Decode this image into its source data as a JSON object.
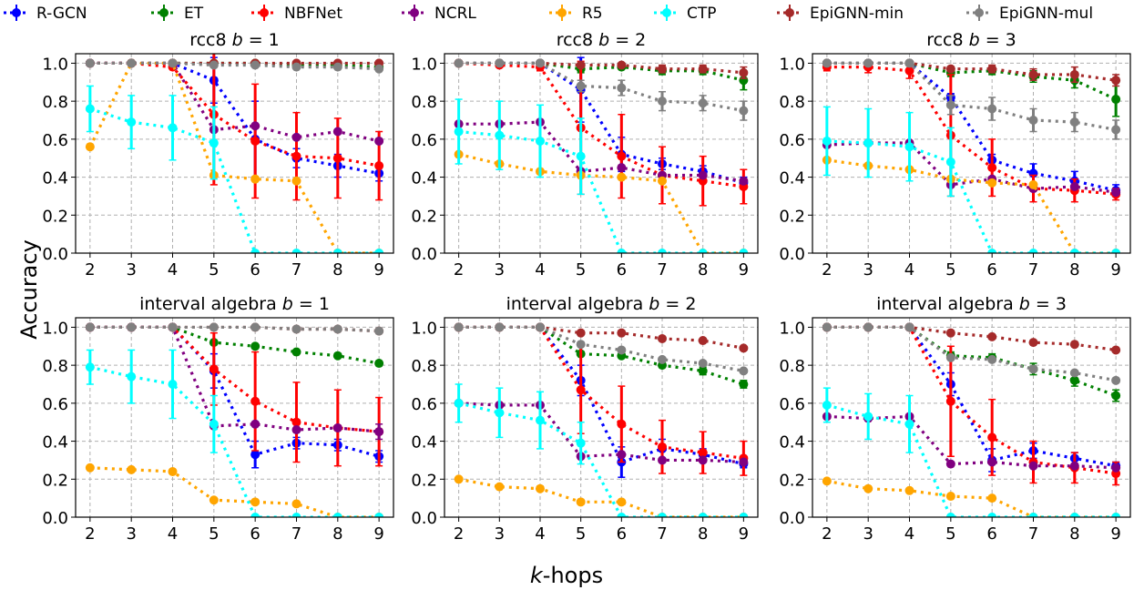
{
  "chart_data": {
    "type": "line",
    "ylabel": "Accuracy",
    "xlabel": "k-hops",
    "legend_placement": "top",
    "grid": true,
    "xlim": [
      1.65,
      9.35
    ],
    "ylim": [
      0,
      1.05
    ],
    "x": [
      2,
      3,
      4,
      5,
      6,
      7,
      8,
      9
    ],
    "xticks": [
      "2",
      "3",
      "4",
      "5",
      "6",
      "7",
      "8",
      "9"
    ],
    "yticks": [
      "0.0",
      "0.2",
      "0.4",
      "0.6",
      "0.8",
      "1.0"
    ],
    "series_styles": [
      {
        "name": "R-GCN",
        "color": "#0000ff"
      },
      {
        "name": "ET",
        "color": "#008000"
      },
      {
        "name": "NBFNet",
        "color": "#ff0000"
      },
      {
        "name": "NCRL",
        "color": "#800080"
      },
      {
        "name": "R5",
        "color": "#ffa500"
      },
      {
        "name": "CTP",
        "color": "#00ffff"
      },
      {
        "name": "EpiGNN-min",
        "color": "#a52a2a"
      },
      {
        "name": "EpiGNN-mul",
        "color": "#808080"
      }
    ],
    "panels": [
      {
        "title": "rcc8 b = 1",
        "series": [
          {
            "name": "R-GCN",
            "values": [
              1,
              1,
              1,
              0.91,
              0.6,
              0.5,
              0.46,
              0.42
            ],
            "err": [
              0,
              0,
              0,
              0.12,
              0.2,
              0.05,
              0.06,
              0.04
            ]
          },
          {
            "name": "ET",
            "values": [
              1,
              1,
              1,
              1,
              1,
              0.99,
              0.99,
              0.98
            ]
          },
          {
            "name": "NBFNet",
            "values": [
              1,
              1,
              0.98,
              0.73,
              0.59,
              0.51,
              0.5,
              0.46
            ],
            "err": [
              0,
              0,
              0.01,
              0.37,
              0.3,
              0.23,
              0.21,
              0.18
            ]
          },
          {
            "name": "NCRL",
            "values": [
              1,
              1,
              1,
              0.65,
              0.67,
              0.61,
              0.64,
              0.59
            ]
          },
          {
            "name": "R5",
            "values": [
              0.56,
              1,
              1,
              0.41,
              0.39,
              0.38,
              0,
              0
            ]
          },
          {
            "name": "CTP",
            "values": [
              0.76,
              0.69,
              0.66,
              0.58,
              0,
              0,
              0,
              0
            ],
            "err": [
              0.12,
              0.14,
              0.17,
              0.19,
              0,
              0,
              0,
              0
            ]
          },
          {
            "name": "EpiGNN-min",
            "values": [
              1,
              1,
              1,
              1,
              1,
              1,
              1,
              1
            ]
          },
          {
            "name": "EpiGNN-mul",
            "values": [
              1,
              1,
              1,
              0.99,
              0.99,
              0.98,
              0.98,
              0.97
            ]
          }
        ]
      },
      {
        "title": "rcc8 b = 2",
        "series": [
          {
            "name": "R-GCN",
            "values": [
              1,
              1,
              1,
              0.86,
              0.52,
              0.47,
              0.43,
              0.37
            ],
            "err": [
              0,
              0,
              0,
              0.17,
              0.09,
              0.03,
              0.03,
              0.03
            ]
          },
          {
            "name": "ET",
            "values": [
              1,
              1,
              1,
              0.97,
              0.98,
              0.96,
              0.96,
              0.91
            ],
            "err": [
              0,
              0,
              0,
              0.02,
              0.01,
              0.02,
              0.02,
              0.05
            ]
          },
          {
            "name": "NBFNet",
            "values": [
              1,
              0.99,
              0.98,
              0.66,
              0.51,
              0.41,
              0.38,
              0.35
            ],
            "err": [
              0,
              0.01,
              0.02,
              0.35,
              0.22,
              0.15,
              0.13,
              0.09
            ]
          },
          {
            "name": "NCRL",
            "values": [
              0.68,
              0.68,
              0.69,
              0.43,
              0.45,
              0.41,
              0.41,
              0.38
            ]
          },
          {
            "name": "R5",
            "values": [
              0.52,
              0.47,
              0.43,
              0.41,
              0.4,
              0.38,
              0,
              0
            ]
          },
          {
            "name": "CTP",
            "values": [
              0.64,
              0.62,
              0.59,
              0.51,
              0,
              0,
              0,
              0
            ],
            "err": [
              0.17,
              0.18,
              0.19,
              0.2,
              0,
              0,
              0,
              0
            ]
          },
          {
            "name": "EpiGNN-min",
            "values": [
              1,
              1,
              1,
              0.99,
              0.99,
              0.97,
              0.97,
              0.95
            ],
            "err": [
              0,
              0,
              0,
              0.01,
              0.01,
              0.02,
              0.02,
              0.03
            ]
          },
          {
            "name": "EpiGNN-mul",
            "values": [
              1,
              1,
              1,
              0.88,
              0.87,
              0.8,
              0.79,
              0.75
            ],
            "err": [
              0,
              0,
              0,
              0.03,
              0.04,
              0.05,
              0.04,
              0.05
            ]
          }
        ]
      },
      {
        "title": "rcc8 b = 3",
        "series": [
          {
            "name": "R-GCN",
            "values": [
              1,
              1,
              1,
              0.82,
              0.49,
              0.42,
              0.38,
              0.33
            ],
            "err": [
              0,
              0,
              0,
              0.02,
              0.03,
              0.05,
              0.05,
              0.03
            ]
          },
          {
            "name": "ET",
            "values": [
              1,
              1,
              1,
              0.95,
              0.96,
              0.93,
              0.91,
              0.81
            ],
            "err": [
              0,
              0,
              0,
              0.02,
              0.02,
              0.03,
              0.04,
              0.09
            ]
          },
          {
            "name": "NBFNet",
            "values": [
              0.98,
              0.98,
              0.96,
              0.62,
              0.45,
              0.34,
              0.33,
              0.31
            ],
            "err": [
              0.02,
              0.03,
              0.04,
              0.32,
              0.15,
              0.07,
              0.06,
              0.03
            ]
          },
          {
            "name": "NCRL",
            "values": [
              0.57,
              0.58,
              0.58,
              0.36,
              0.39,
              0.34,
              0.35,
              0.32
            ]
          },
          {
            "name": "R5",
            "values": [
              0.49,
              0.46,
              0.44,
              0.39,
              0.37,
              0.36,
              0,
              0
            ]
          },
          {
            "name": "CTP",
            "values": [
              0.59,
              0.58,
              0.56,
              0.48,
              0,
              0,
              0,
              0
            ],
            "err": [
              0.18,
              0.18,
              0.18,
              0.18,
              0,
              0,
              0,
              0
            ]
          },
          {
            "name": "EpiGNN-min",
            "values": [
              1,
              1,
              1,
              0.97,
              0.97,
              0.94,
              0.94,
              0.91
            ],
            "err": [
              0,
              0,
              0,
              0.01,
              0.02,
              0.03,
              0.04,
              0.03
            ]
          },
          {
            "name": "EpiGNN-mul",
            "values": [
              1,
              1,
              1,
              0.78,
              0.76,
              0.7,
              0.69,
              0.65
            ],
            "err": [
              0,
              0,
              0,
              0.05,
              0.06,
              0.06,
              0.05,
              0.05
            ]
          }
        ]
      },
      {
        "title": "interval algebra b = 1",
        "series": [
          {
            "name": "R-GCN",
            "values": [
              1,
              1,
              1,
              0.77,
              0.33,
              0.39,
              0.38,
              0.32
            ],
            "err": [
              0,
              0,
              0,
              0.09,
              0.07,
              0.03,
              0.03,
              0.03
            ]
          },
          {
            "name": "ET",
            "values": [
              1,
              1,
              1,
              0.92,
              0.9,
              0.87,
              0.85,
              0.81
            ]
          },
          {
            "name": "NBFNet",
            "values": [
              1,
              1,
              1,
              0.78,
              0.61,
              0.5,
              0.47,
              0.45
            ],
            "err": [
              0,
              0,
              0,
              0.19,
              0.26,
              0.21,
              0.2,
              0.18
            ]
          },
          {
            "name": "NCRL",
            "values": [
              1,
              1,
              1,
              0.48,
              0.49,
              0.46,
              0.47,
              0.45
            ],
            "err": [
              0,
              0,
              0,
              0,
              0,
              0.01,
              0,
              0.04
            ]
          },
          {
            "name": "R5",
            "values": [
              0.26,
              0.25,
              0.24,
              0.09,
              0.08,
              0.07,
              0,
              0
            ]
          },
          {
            "name": "CTP",
            "values": [
              0.79,
              0.74,
              0.7,
              0.49,
              0,
              0,
              0,
              0
            ],
            "err": [
              0.09,
              0.14,
              0.18,
              0.15,
              0,
              0,
              0,
              0
            ]
          },
          {
            "name": "EpiGNN-min",
            "values": [
              1,
              1,
              1,
              1,
              1,
              0.99,
              0.99,
              0.98
            ]
          },
          {
            "name": "EpiGNN-mul",
            "values": [
              1,
              1,
              1,
              1,
              1,
              0.99,
              0.99,
              0.98
            ]
          }
        ]
      },
      {
        "title": "interval algebra b = 2",
        "series": [
          {
            "name": "R-GCN",
            "values": [
              1,
              1,
              1,
              0.72,
              0.29,
              0.36,
              0.33,
              0.28
            ],
            "err": [
              0,
              0,
              0,
              0.08,
              0.08,
              0.05,
              0.03,
              0.02
            ]
          },
          {
            "name": "ET",
            "values": [
              1,
              1,
              1,
              0.86,
              0.85,
              0.8,
              0.77,
              0.7
            ],
            "err": [
              0,
              0,
              0,
              0.01,
              0.01,
              0.01,
              0.02,
              0.02
            ]
          },
          {
            "name": "NBFNet",
            "values": [
              1,
              1,
              1,
              0.67,
              0.49,
              0.37,
              0.34,
              0.31
            ],
            "err": [
              0,
              0,
              0,
              0.23,
              0.2,
              0.14,
              0.11,
              0.09
            ]
          },
          {
            "name": "NCRL",
            "values": [
              0.6,
              0.59,
              0.59,
              0.32,
              0.33,
              0.3,
              0.3,
              0.29
            ]
          },
          {
            "name": "R5",
            "values": [
              0.2,
              0.16,
              0.15,
              0.08,
              0.08,
              0,
              0,
              0
            ]
          },
          {
            "name": "CTP",
            "values": [
              0.6,
              0.55,
              0.51,
              0.39,
              0,
              0,
              0,
              0
            ],
            "err": [
              0.1,
              0.13,
              0.15,
              0.11,
              0,
              0,
              0,
              0
            ]
          },
          {
            "name": "EpiGNN-min",
            "values": [
              1,
              1,
              1,
              0.97,
              0.97,
              0.94,
              0.93,
              0.89
            ]
          },
          {
            "name": "EpiGNN-mul",
            "values": [
              1,
              1,
              1,
              0.91,
              0.88,
              0.83,
              0.81,
              0.77
            ]
          }
        ]
      },
      {
        "title": "interval algebra b = 3",
        "series": [
          {
            "name": "R-GCN",
            "values": [
              1,
              1,
              1,
              0.7,
              0.3,
              0.35,
              0.31,
              0.27
            ],
            "err": [
              0,
              0,
              0,
              0.06,
              0.06,
              0.04,
              0.03,
              0.02
            ]
          },
          {
            "name": "ET",
            "values": [
              1,
              1,
              1,
              0.85,
              0.84,
              0.78,
              0.72,
              0.64
            ],
            "err": [
              0,
              0,
              0,
              0.02,
              0.02,
              0.03,
              0.03,
              0.03
            ]
          },
          {
            "name": "NBFNet",
            "values": [
              1,
              1,
              1,
              0.61,
              0.42,
              0.29,
              0.26,
              0.23
            ],
            "err": [
              0,
              0,
              0,
              0.29,
              0.2,
              0.11,
              0.08,
              0.06
            ]
          },
          {
            "name": "NCRL",
            "values": [
              0.53,
              0.52,
              0.53,
              0.28,
              0.29,
              0.27,
              0.27,
              0.26
            ]
          },
          {
            "name": "R5",
            "values": [
              0.19,
              0.15,
              0.14,
              0.11,
              0.1,
              0,
              0,
              0
            ]
          },
          {
            "name": "CTP",
            "values": [
              0.59,
              0.53,
              0.49,
              0,
              0,
              0,
              0,
              0
            ],
            "err": [
              0.09,
              0.12,
              0.15,
              0,
              0,
              0,
              0,
              0
            ]
          },
          {
            "name": "EpiGNN-min",
            "values": [
              1,
              1,
              1,
              0.97,
              0.95,
              0.92,
              0.91,
              0.88
            ]
          },
          {
            "name": "EpiGNN-mul",
            "values": [
              1,
              1,
              1,
              0.84,
              0.83,
              0.78,
              0.76,
              0.72
            ]
          }
        ]
      }
    ]
  }
}
